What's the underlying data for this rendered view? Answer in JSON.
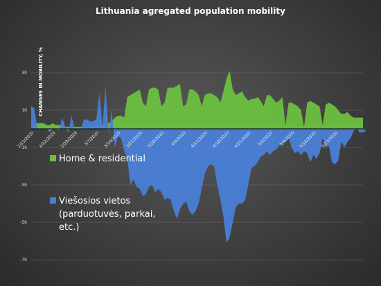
{
  "chart_data": {
    "type": "area",
    "title": "Lithuania agregated population mobility",
    "ylabel": "CHANGES IN MOBILITY, %",
    "xlabel": "",
    "ylim": [
      -70,
      40
    ],
    "yticks": [
      30,
      10,
      -10,
      -30,
      -50,
      -70
    ],
    "x_start": "2/15/2020",
    "xtick_labels": [
      "2/15/2020",
      "2/22/2020",
      "2/29/2020",
      "3/7/2020",
      "3/14/2020",
      "3/21/2020",
      "3/28/2020",
      "4/4/2020",
      "4/11/2020",
      "4/18/2020",
      "4/25/2020",
      "5/2/2020",
      "5/9/2020",
      "5/16/2020",
      "5/23/2020"
    ],
    "legend_position": "left",
    "series": [
      {
        "name": "Home & residential",
        "color": "#6cbf3f",
        "values": [
          0,
          2,
          3,
          3,
          3,
          2,
          2,
          3,
          2,
          2,
          2,
          1,
          1,
          1,
          1,
          1,
          1,
          1,
          1,
          1,
          1,
          2,
          2,
          2,
          2,
          3,
          4,
          6,
          7,
          7,
          6,
          17,
          18,
          19,
          20,
          21,
          14,
          12,
          21,
          22,
          22,
          21,
          12,
          14,
          22,
          22,
          22,
          23,
          24,
          12,
          13,
          21,
          21,
          20,
          18,
          12,
          18,
          19,
          19,
          18,
          17,
          14,
          20,
          27,
          31,
          21,
          18,
          19,
          20,
          17,
          15,
          16,
          16,
          17,
          15,
          12,
          18,
          18,
          16,
          14,
          15,
          17,
          2,
          14,
          14,
          13,
          12,
          10,
          1,
          14,
          15,
          14,
          13,
          12,
          2,
          13,
          14,
          13,
          12,
          10,
          8,
          8,
          9,
          7,
          6,
          6,
          6,
          6
        ]
      },
      {
        "name": "Viešosios vietos\n(parduotuvės, parkai,\netc.)",
        "color": "#4a7fd6",
        "values": [
          12,
          11,
          0,
          0,
          0,
          0,
          -2,
          0,
          0,
          -1,
          6,
          1,
          -2,
          7,
          0,
          0,
          0,
          5,
          5,
          4,
          4,
          5,
          19,
          1,
          23,
          -3,
          10,
          -10,
          -4,
          -5,
          -12,
          -16,
          -30,
          -27,
          -31,
          -32,
          -36,
          -35,
          -31,
          -30,
          -34,
          -32,
          -34,
          -38,
          -37,
          -38,
          -44,
          -48,
          -43,
          -40,
          -39,
          -44,
          -46,
          -44,
          -40,
          -32,
          -24,
          -20,
          -19,
          -20,
          -30,
          -38,
          -47,
          -61,
          -58,
          -50,
          -42,
          -40,
          -40,
          -38,
          -30,
          -21,
          -20,
          -18,
          -15,
          -14,
          -12,
          -14,
          -12,
          -11,
          -9,
          -8,
          -7,
          -5,
          -10,
          -13,
          -12,
          -14,
          -12,
          -13,
          -18,
          -14,
          -16,
          -13,
          -5,
          -10,
          -9,
          -18,
          -19,
          -17,
          -7,
          -10,
          -7,
          -5,
          -1,
          0,
          -2,
          -2,
          -1
        ]
      }
    ]
  }
}
